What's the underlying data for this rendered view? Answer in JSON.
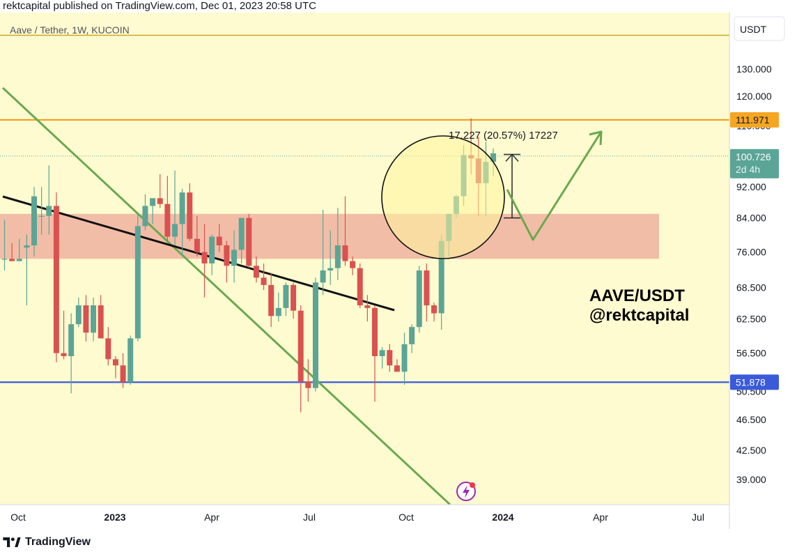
{
  "header": {
    "published_text": "rektcapital published on TradingView.com, Dec 01, 2023 20:58 UTC"
  },
  "footer": {
    "logo_text": "TradingView"
  },
  "chart": {
    "symbol_label": "Aave / Tether, 1W, KUCOIN",
    "currency_button": "USDT",
    "watermark_line1": "AAVE/USDT",
    "watermark_line2": "@rektcapital",
    "measure_label": "17.227 (20.57%) 17227",
    "colors": {
      "background": "#fffbd0",
      "up": "#5ba596",
      "down": "#d9524f",
      "zone": "#f0b2a0",
      "trend_green": "#6aa84f",
      "blue_line": "#3a5ad9",
      "orange_line": "#f0a02a",
      "top_line": "#c9a92a",
      "price_badge": "#5ba596",
      "orange_badge": "#f5a623",
      "blue_badge": "#3a5ad9"
    }
  },
  "chart_data": {
    "type": "candlestick",
    "title": "Aave / Tether, 1W, KUCOIN",
    "yscale": "log",
    "ylim": [
      37.0,
      150.0
    ],
    "y_ticks": [
      "130.000",
      "120.000",
      "110.000",
      "92.000",
      "84.000",
      "76.000",
      "68.500",
      "62.500",
      "56.500",
      "50.500",
      "46.500",
      "42.500",
      "39.000"
    ],
    "x_ticks": [
      "Oct",
      "2023",
      "Apr",
      "Jul",
      "Oct",
      "2024",
      "Apr",
      "Jul"
    ],
    "x_tick_bold": [
      "2023",
      "2024"
    ],
    "price_badges": [
      {
        "label": "111.971",
        "value": 111.971,
        "style": "orange"
      },
      {
        "label": "100.726",
        "sublabel": "2d 4h",
        "value": 100.726,
        "style": "current"
      },
      {
        "label": "51.878",
        "value": 51.878,
        "style": "blue"
      }
    ],
    "horizontal_lines": [
      {
        "value": 143.5,
        "color": "#c9a92a"
      },
      {
        "value": 111.971,
        "color": "#f0a02a"
      },
      {
        "value": 51.878,
        "color": "#3a5ad9"
      }
    ],
    "support_zone": [
      74.5,
      85.0
    ],
    "measure": {
      "from": 84.0,
      "to": 101.2,
      "label": "17.227 (20.57%) 17227"
    },
    "candles": [
      {
        "o": 74.5,
        "h": 83.5,
        "l": 72.0,
        "c": 74.5
      },
      {
        "o": 74.5,
        "h": 78.0,
        "l": 74.0,
        "c": 74.0
      },
      {
        "o": 74.0,
        "h": 79.0,
        "l": 74.0,
        "c": 74.5
      },
      {
        "o": 77.0,
        "h": 80.0,
        "l": 65.0,
        "c": 77.5
      },
      {
        "o": 77.5,
        "h": 92.0,
        "l": 75.0,
        "c": 89.5
      },
      {
        "o": 84.5,
        "h": 92.0,
        "l": 80.0,
        "c": 84.5
      },
      {
        "o": 84.5,
        "h": 98.0,
        "l": 80.0,
        "c": 87.0
      },
      {
        "o": 87.0,
        "h": 90.5,
        "l": 55.0,
        "c": 56.5
      },
      {
        "o": 56.5,
        "h": 64.0,
        "l": 55.5,
        "c": 56.0
      },
      {
        "o": 56.0,
        "h": 63.5,
        "l": 50.2,
        "c": 61.5
      },
      {
        "o": 61.5,
        "h": 66.5,
        "l": 61.0,
        "c": 65.0
      },
      {
        "o": 65.0,
        "h": 67.0,
        "l": 58.5,
        "c": 60.0
      },
      {
        "o": 60.0,
        "h": 66.5,
        "l": 58.5,
        "c": 65.0
      },
      {
        "o": 65.0,
        "h": 67.0,
        "l": 59.0,
        "c": 59.0
      },
      {
        "o": 59.0,
        "h": 61.0,
        "l": 54.5,
        "c": 55.5
      },
      {
        "o": 55.5,
        "h": 56.0,
        "l": 52.5,
        "c": 54.5
      },
      {
        "o": 54.5,
        "h": 56.5,
        "l": 51.0,
        "c": 51.9
      },
      {
        "o": 51.9,
        "h": 59.5,
        "l": 51.5,
        "c": 59.0
      },
      {
        "o": 59.0,
        "h": 85.0,
        "l": 58.5,
        "c": 82.0
      },
      {
        "o": 82.0,
        "h": 90.0,
        "l": 81.0,
        "c": 87.0
      },
      {
        "o": 87.0,
        "h": 89.0,
        "l": 82.5,
        "c": 89.0
      },
      {
        "o": 89.0,
        "h": 95.5,
        "l": 86.5,
        "c": 87.5
      },
      {
        "o": 87.5,
        "h": 95.0,
        "l": 78.5,
        "c": 79.5
      },
      {
        "o": 79.5,
        "h": 96.5,
        "l": 77.5,
        "c": 82.5
      },
      {
        "o": 82.5,
        "h": 91.5,
        "l": 75.0,
        "c": 90.5
      },
      {
        "o": 90.5,
        "h": 93.0,
        "l": 78.5,
        "c": 79.0
      },
      {
        "o": 79.0,
        "h": 84.5,
        "l": 75.0,
        "c": 76.0
      },
      {
        "o": 76.0,
        "h": 82.5,
        "l": 66.5,
        "c": 73.5
      },
      {
        "o": 73.5,
        "h": 80.0,
        "l": 71.0,
        "c": 79.5
      },
      {
        "o": 79.5,
        "h": 82.5,
        "l": 76.0,
        "c": 77.5
      },
      {
        "o": 77.5,
        "h": 78.5,
        "l": 69.5,
        "c": 73.0
      },
      {
        "o": 73.0,
        "h": 81.0,
        "l": 69.5,
        "c": 76.5
      },
      {
        "o": 76.5,
        "h": 84.0,
        "l": 73.5,
        "c": 84.0
      },
      {
        "o": 84.0,
        "h": 85.0,
        "l": 72.5,
        "c": 73.0
      },
      {
        "o": 73.0,
        "h": 75.0,
        "l": 69.5,
        "c": 70.5
      },
      {
        "o": 70.5,
        "h": 73.5,
        "l": 68.0,
        "c": 69.0
      },
      {
        "o": 69.0,
        "h": 71.5,
        "l": 61.0,
        "c": 63.0
      },
      {
        "o": 63.0,
        "h": 67.5,
        "l": 62.0,
        "c": 64.5
      },
      {
        "o": 64.5,
        "h": 69.5,
        "l": 63.0,
        "c": 69.0
      },
      {
        "o": 69.0,
        "h": 69.5,
        "l": 62.5,
        "c": 64.0
      },
      {
        "o": 64.0,
        "h": 65.0,
        "l": 47.5,
        "c": 52.0
      },
      {
        "o": 52.0,
        "h": 55.5,
        "l": 49.0,
        "c": 51.0
      },
      {
        "o": 51.0,
        "h": 70.5,
        "l": 50.5,
        "c": 69.5
      },
      {
        "o": 69.5,
        "h": 86.0,
        "l": 67.0,
        "c": 72.0
      },
      {
        "o": 72.0,
        "h": 81.0,
        "l": 69.0,
        "c": 72.5
      },
      {
        "o": 72.5,
        "h": 86.5,
        "l": 70.0,
        "c": 77.5
      },
      {
        "o": 77.5,
        "h": 89.5,
        "l": 73.0,
        "c": 74.0
      },
      {
        "o": 74.0,
        "h": 75.0,
        "l": 71.0,
        "c": 72.5
      },
      {
        "o": 72.5,
        "h": 73.5,
        "l": 64.5,
        "c": 65.0
      },
      {
        "o": 65.0,
        "h": 67.0,
        "l": 62.0,
        "c": 64.5
      },
      {
        "o": 64.5,
        "h": 65.0,
        "l": 49.0,
        "c": 56.0
      },
      {
        "o": 56.0,
        "h": 57.5,
        "l": 54.0,
        "c": 57.0
      },
      {
        "o": 57.0,
        "h": 58.0,
        "l": 53.5,
        "c": 54.5
      },
      {
        "o": 54.5,
        "h": 55.5,
        "l": 53.5,
        "c": 53.5
      },
      {
        "o": 53.5,
        "h": 60.0,
        "l": 51.5,
        "c": 58.0
      },
      {
        "o": 58.0,
        "h": 61.5,
        "l": 56.5,
        "c": 61.0
      },
      {
        "o": 61.0,
        "h": 73.0,
        "l": 60.0,
        "c": 72.0
      },
      {
        "o": 72.0,
        "h": 73.5,
        "l": 62.0,
        "c": 65.0
      },
      {
        "o": 65.0,
        "h": 65.5,
        "l": 62.0,
        "c": 63.5
      },
      {
        "o": 63.5,
        "h": 80.0,
        "l": 60.5,
        "c": 78.5
      },
      {
        "o": 78.5,
        "h": 85.0,
        "l": 75.0,
        "c": 85.0
      },
      {
        "o": 85.0,
        "h": 90.0,
        "l": 84.0,
        "c": 89.5
      },
      {
        "o": 89.5,
        "h": 104.0,
        "l": 87.0,
        "c": 101.0
      },
      {
        "o": 101.0,
        "h": 112.5,
        "l": 95.5,
        "c": 100.0
      },
      {
        "o": 100.0,
        "h": 106.5,
        "l": 84.5,
        "c": 93.0
      },
      {
        "o": 93.0,
        "h": 105.0,
        "l": 84.5,
        "c": 99.0
      },
      {
        "o": 99.0,
        "h": 103.0,
        "l": 95.0,
        "c": 101.5
      }
    ]
  }
}
